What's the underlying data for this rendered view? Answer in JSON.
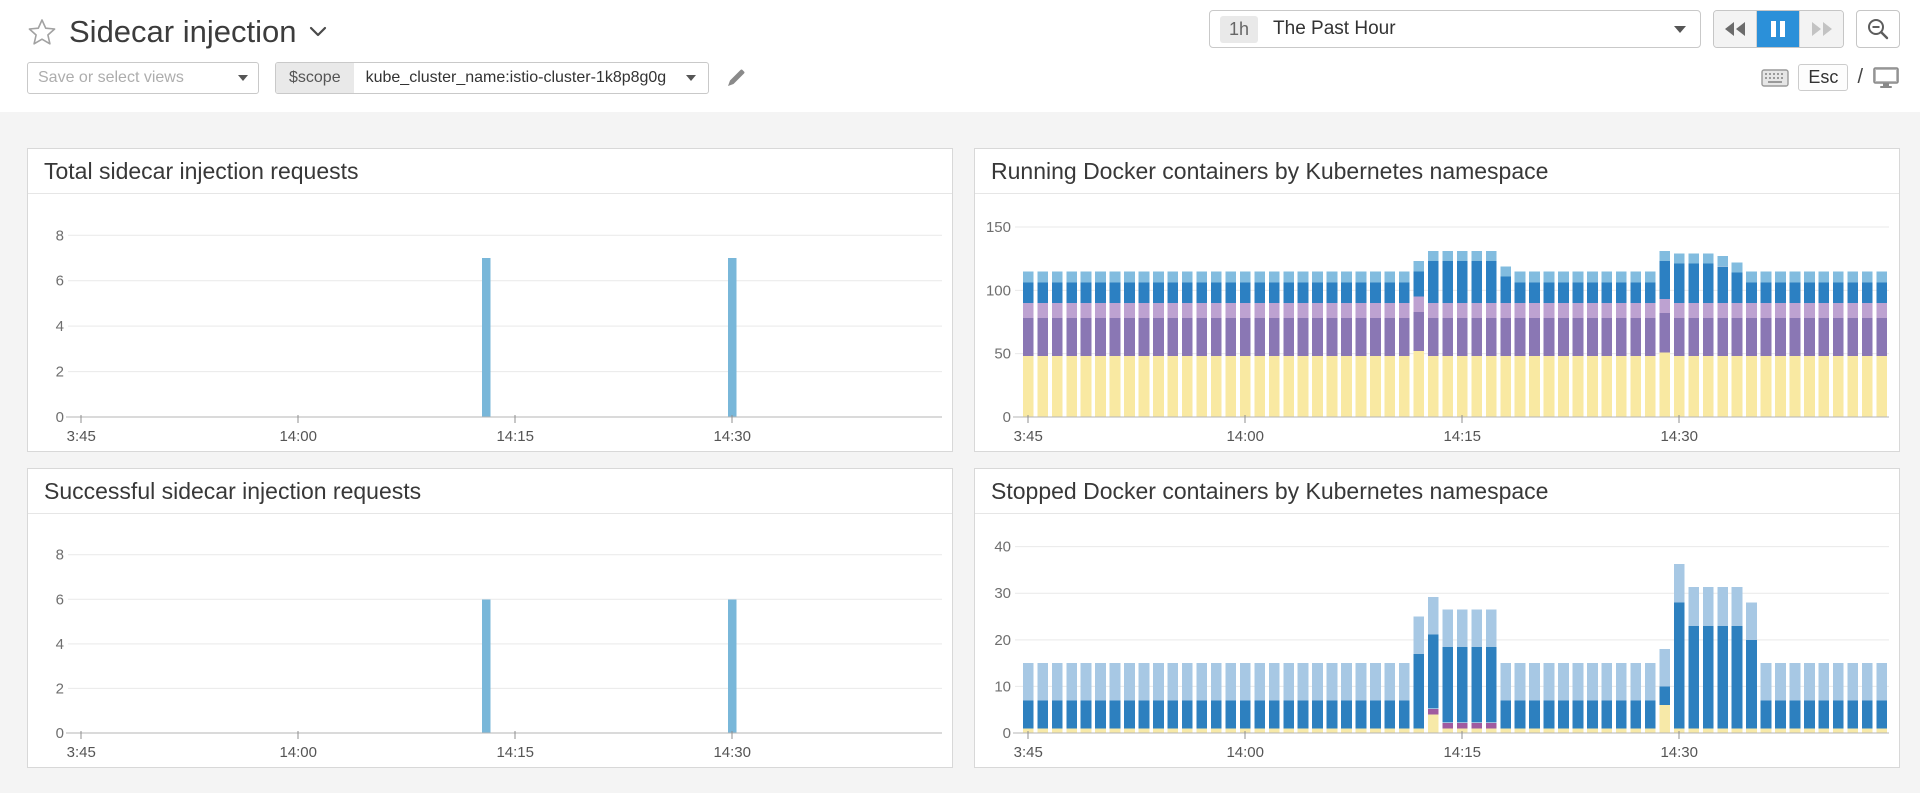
{
  "header": {
    "title": "Sidecar injection",
    "time_range": {
      "badge": "1h",
      "label": "The Past Hour"
    },
    "views_placeholder": "Save or select views",
    "scope": {
      "key": "$scope",
      "value": "kube_cluster_name:istio-cluster-1k8p8g0g"
    },
    "shortcuts": {
      "esc": "Esc",
      "slash": "/"
    }
  },
  "icons": {
    "star": "outline-star",
    "chevron-down": "v",
    "caret-down": "▾",
    "rewind": "◀◀",
    "pause": "❚❚",
    "fast-forward": "▶▶",
    "zoom-out": "magnifier-minus",
    "pencil": "edit-pencil",
    "keyboard": "keyboard",
    "monitor": "tv-screen"
  },
  "colors": {
    "accent_blue": "#2b90d9",
    "single_bar": "#79b7d9",
    "running_yellow": "#f9e9a2",
    "running_purple": "#8a77b4",
    "running_lavender": "#bda2d1",
    "running_darkblue": "#2c80c2",
    "running_lightblue": "#82bcdf",
    "stopped_yellow": "#f7e9a8",
    "stopped_purple": "#a05ba0",
    "stopped_darkblue": "#2d80bf",
    "stopped_lightblue": "#a7c8e4"
  },
  "chart_data": [
    {
      "type": "bar",
      "title": "Total sidecar injection requests",
      "n_points": 60,
      "x_ticks": {
        "indices": [
          0,
          15,
          30,
          45
        ],
        "labels": [
          "3:45",
          "14:00",
          "14:15",
          "14:30"
        ]
      },
      "ylim": [
        0,
        9.2
      ],
      "yticks": [
        0,
        2,
        4,
        6,
        8
      ],
      "bar_ratio": 0.6,
      "series": [
        {
          "name": "requests",
          "color": "#79b7d9",
          "values": [
            0,
            0,
            0,
            0,
            0,
            0,
            0,
            0,
            0,
            0,
            0,
            0,
            0,
            0,
            0,
            0,
            0,
            0,
            0,
            0,
            0,
            0,
            0,
            0,
            0,
            0,
            0,
            0,
            7,
            0,
            0,
            0,
            0,
            0,
            0,
            0,
            0,
            0,
            0,
            0,
            0,
            0,
            0,
            0,
            0,
            7,
            0,
            0,
            0,
            0,
            0,
            0,
            0,
            0,
            0,
            0,
            0,
            0,
            0,
            0
          ]
        }
      ]
    },
    {
      "type": "stacked_bar",
      "title": "Running Docker containers by Kubernetes namespace",
      "n_points": 60,
      "x_ticks": {
        "indices": [
          0,
          15,
          30,
          45
        ],
        "labels": [
          "3:45",
          "14:00",
          "14:15",
          "14:30"
        ]
      },
      "ylim": [
        0,
        165
      ],
      "yticks": [
        0,
        50,
        100,
        150
      ],
      "bar_ratio": 0.74,
      "series": [
        {
          "name": "yellow",
          "color": "#f9e9a2",
          "values": [
            48,
            48,
            48,
            48,
            48,
            48,
            48,
            48,
            48,
            48,
            48,
            48,
            48,
            48,
            48,
            48,
            48,
            48,
            48,
            48,
            48,
            48,
            48,
            48,
            48,
            48,
            48,
            52,
            48,
            48,
            48,
            48,
            48,
            48,
            48,
            48,
            48,
            48,
            48,
            48,
            48,
            48,
            48,
            48,
            51,
            48,
            48,
            48,
            48,
            48,
            48,
            48,
            48,
            48,
            48,
            48,
            48,
            48,
            48,
            48
          ]
        },
        {
          "name": "purple",
          "color": "#8a77b4",
          "values": [
            30,
            30,
            30,
            30,
            30,
            30,
            30,
            30,
            30,
            30,
            30,
            30,
            30,
            30,
            30,
            30,
            30,
            30,
            30,
            30,
            30,
            30,
            30,
            30,
            30,
            30,
            30,
            31,
            30,
            30,
            30,
            30,
            30,
            30,
            30,
            30,
            30,
            30,
            30,
            30,
            30,
            30,
            30,
            30,
            31,
            30,
            30,
            30,
            30,
            30,
            30,
            30,
            30,
            30,
            30,
            30,
            30,
            30,
            30,
            30
          ]
        },
        {
          "name": "lavender",
          "color": "#bda2d1",
          "values": [
            12,
            12,
            12,
            12,
            12,
            12,
            12,
            12,
            12,
            12,
            12,
            12,
            12,
            12,
            12,
            12,
            12,
            12,
            12,
            12,
            12,
            12,
            12,
            12,
            12,
            12,
            12,
            12,
            12,
            12,
            12,
            12,
            12,
            12,
            12,
            12,
            12,
            12,
            12,
            12,
            12,
            12,
            12,
            12,
            11,
            12,
            12,
            12,
            12,
            12,
            12,
            12,
            12,
            12,
            12,
            12,
            12,
            12,
            12,
            12
          ]
        },
        {
          "name": "dark-blue",
          "color": "#2c80c2",
          "values": [
            16,
            16,
            16,
            16,
            16,
            16,
            16,
            16,
            16,
            16,
            16,
            16,
            16,
            16,
            16,
            16,
            16,
            16,
            16,
            16,
            16,
            16,
            16,
            16,
            16,
            16,
            16,
            20,
            33,
            33,
            33,
            33,
            33,
            21,
            16,
            16,
            16,
            16,
            16,
            16,
            16,
            16,
            16,
            16,
            30,
            31,
            31,
            31,
            29,
            24,
            16,
            16,
            16,
            16,
            16,
            16,
            16,
            16,
            16,
            16
          ]
        },
        {
          "name": "light-blue",
          "color": "#82bcdf",
          "values": [
            9,
            9,
            9,
            9,
            9,
            9,
            9,
            9,
            9,
            9,
            9,
            9,
            9,
            9,
            9,
            9,
            9,
            9,
            9,
            9,
            9,
            9,
            9,
            9,
            9,
            9,
            9,
            8,
            8,
            8,
            8,
            8,
            8,
            8,
            9,
            9,
            9,
            9,
            9,
            9,
            9,
            9,
            9,
            9,
            8,
            8,
            8,
            8,
            8,
            8,
            9,
            9,
            9,
            9,
            9,
            9,
            9,
            9,
            9,
            9
          ]
        }
      ]
    },
    {
      "type": "bar",
      "title": "Successful sidecar injection requests",
      "n_points": 60,
      "x_ticks": {
        "indices": [
          0,
          15,
          30,
          45
        ],
        "labels": [
          "3:45",
          "14:00",
          "14:15",
          "14:30"
        ]
      },
      "ylim": [
        0,
        9.2
      ],
      "yticks": [
        0,
        2,
        4,
        6,
        8
      ],
      "bar_ratio": 0.6,
      "series": [
        {
          "name": "requests",
          "color": "#79b7d9",
          "values": [
            0,
            0,
            0,
            0,
            0,
            0,
            0,
            0,
            0,
            0,
            0,
            0,
            0,
            0,
            0,
            0,
            0,
            0,
            0,
            0,
            0,
            0,
            0,
            0,
            0,
            0,
            0,
            0,
            6,
            0,
            0,
            0,
            0,
            0,
            0,
            0,
            0,
            0,
            0,
            0,
            0,
            0,
            0,
            0,
            0,
            6,
            0,
            0,
            0,
            0,
            0,
            0,
            0,
            0,
            0,
            0,
            0,
            0,
            0,
            0
          ]
        }
      ]
    },
    {
      "type": "stacked_bar",
      "title": "Stopped Docker containers by Kubernetes namespace",
      "n_points": 60,
      "x_ticks": {
        "indices": [
          0,
          15,
          30,
          45
        ],
        "labels": [
          "3:45",
          "14:00",
          "14:15",
          "14:30"
        ]
      },
      "ylim": [
        0,
        44
      ],
      "yticks": [
        0,
        10,
        20,
        30,
        40
      ],
      "bar_ratio": 0.74,
      "series": [
        {
          "name": "yellow",
          "color": "#f7e9a8",
          "values": [
            1,
            1,
            1,
            1,
            1,
            1,
            1,
            1,
            1,
            1,
            1,
            1,
            1,
            1,
            1,
            1,
            1,
            1,
            1,
            1,
            1,
            1,
            1,
            1,
            1,
            1,
            1,
            1,
            4,
            1,
            1,
            1,
            1,
            1,
            1,
            1,
            1,
            1,
            1,
            1,
            1,
            1,
            1,
            1,
            6,
            1,
            1,
            1,
            1,
            1,
            1,
            1,
            1,
            1,
            1,
            1,
            1,
            1,
            1,
            1
          ]
        },
        {
          "name": "purple",
          "color": "#a05ba0",
          "values": [
            0,
            0,
            0,
            0,
            0,
            0,
            0,
            0,
            0,
            0,
            0,
            0,
            0,
            0,
            0,
            0,
            0,
            0,
            0,
            0,
            0,
            0,
            0,
            0,
            0,
            0,
            0,
            0,
            1.2,
            1.2,
            1.2,
            1.2,
            1.2,
            0,
            0,
            0,
            0,
            0,
            0,
            0,
            0,
            0,
            0,
            0,
            0,
            0,
            0,
            0,
            0,
            0,
            0,
            0,
            0,
            0,
            0,
            0,
            0,
            0,
            0,
            0
          ]
        },
        {
          "name": "dark-blue",
          "color": "#2d80bf",
          "values": [
            6,
            6,
            6,
            6,
            6,
            6,
            6,
            6,
            6,
            6,
            6,
            6,
            6,
            6,
            6,
            6,
            6,
            6,
            6,
            6,
            6,
            6,
            6,
            6,
            6,
            6,
            6,
            16,
            16,
            16.3,
            16.3,
            16.3,
            16.3,
            6,
            6,
            6,
            6,
            6,
            6,
            6,
            6,
            6,
            6,
            6,
            4,
            27,
            22,
            22,
            22,
            22,
            19,
            6,
            6,
            6,
            6,
            6,
            6,
            6,
            6,
            6
          ]
        },
        {
          "name": "light-blue",
          "color": "#a7c8e4",
          "values": [
            8,
            8,
            8,
            8,
            8,
            8,
            8,
            8,
            8,
            8,
            8,
            8,
            8,
            8,
            8,
            8,
            8,
            8,
            8,
            8,
            8,
            8,
            8,
            8,
            8,
            8,
            8,
            8,
            8,
            8,
            8,
            8,
            8,
            8,
            8,
            8,
            8,
            8,
            8,
            8,
            8,
            8,
            8,
            8,
            8,
            8.3,
            8.3,
            8.3,
            8.3,
            8.3,
            8,
            8,
            8,
            8,
            8,
            8,
            8,
            8,
            8,
            8
          ]
        }
      ]
    }
  ]
}
